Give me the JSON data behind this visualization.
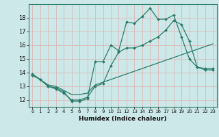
{
  "xlabel": "Humidex (Indice chaleur)",
  "bg_color": "#cce8e8",
  "grid_color": "#ddb8b8",
  "line_color": "#2a7a6a",
  "xlim": [
    -0.5,
    23.5
  ],
  "ylim": [
    11.5,
    19.0
  ],
  "yticks": [
    12,
    13,
    14,
    15,
    16,
    17,
    18
  ],
  "xticks": [
    0,
    1,
    2,
    3,
    4,
    5,
    6,
    7,
    8,
    9,
    10,
    11,
    12,
    13,
    14,
    15,
    16,
    17,
    18,
    19,
    20,
    21,
    22,
    23
  ],
  "line1_x": [
    0,
    1,
    2,
    3,
    4,
    5,
    6,
    7,
    8,
    9,
    10,
    11,
    12,
    13,
    14,
    15,
    16,
    17,
    18,
    19,
    20,
    21,
    22,
    23
  ],
  "line1_y": [
    13.8,
    13.5,
    13.0,
    12.8,
    12.5,
    12.0,
    12.0,
    12.2,
    13.0,
    13.2,
    14.5,
    15.5,
    15.8,
    15.8,
    16.0,
    16.3,
    16.6,
    17.1,
    17.8,
    17.5,
    16.3,
    14.4,
    14.2,
    14.2
  ],
  "line2_x": [
    0,
    1,
    2,
    3,
    4,
    5,
    6,
    7,
    8,
    9,
    10,
    11,
    12,
    13,
    14,
    15,
    16,
    17,
    18,
    19,
    20,
    21,
    22,
    23
  ],
  "line2_y": [
    13.9,
    13.5,
    13.0,
    12.9,
    12.6,
    11.9,
    11.9,
    12.1,
    14.8,
    14.8,
    16.0,
    15.6,
    17.7,
    17.6,
    18.1,
    18.7,
    17.9,
    17.9,
    18.2,
    16.6,
    15.0,
    14.4,
    14.3,
    14.3
  ],
  "line3_x": [
    0,
    1,
    2,
    3,
    4,
    5,
    6,
    7,
    8,
    9,
    10,
    11,
    12,
    13,
    14,
    15,
    16,
    17,
    18,
    19,
    20,
    21,
    22,
    23
  ],
  "line3_y": [
    13.8,
    13.5,
    13.1,
    13.0,
    12.7,
    12.4,
    12.4,
    12.5,
    13.1,
    13.3,
    13.5,
    13.7,
    13.9,
    14.1,
    14.3,
    14.5,
    14.7,
    14.9,
    15.1,
    15.3,
    15.5,
    15.7,
    15.9,
    16.1
  ]
}
